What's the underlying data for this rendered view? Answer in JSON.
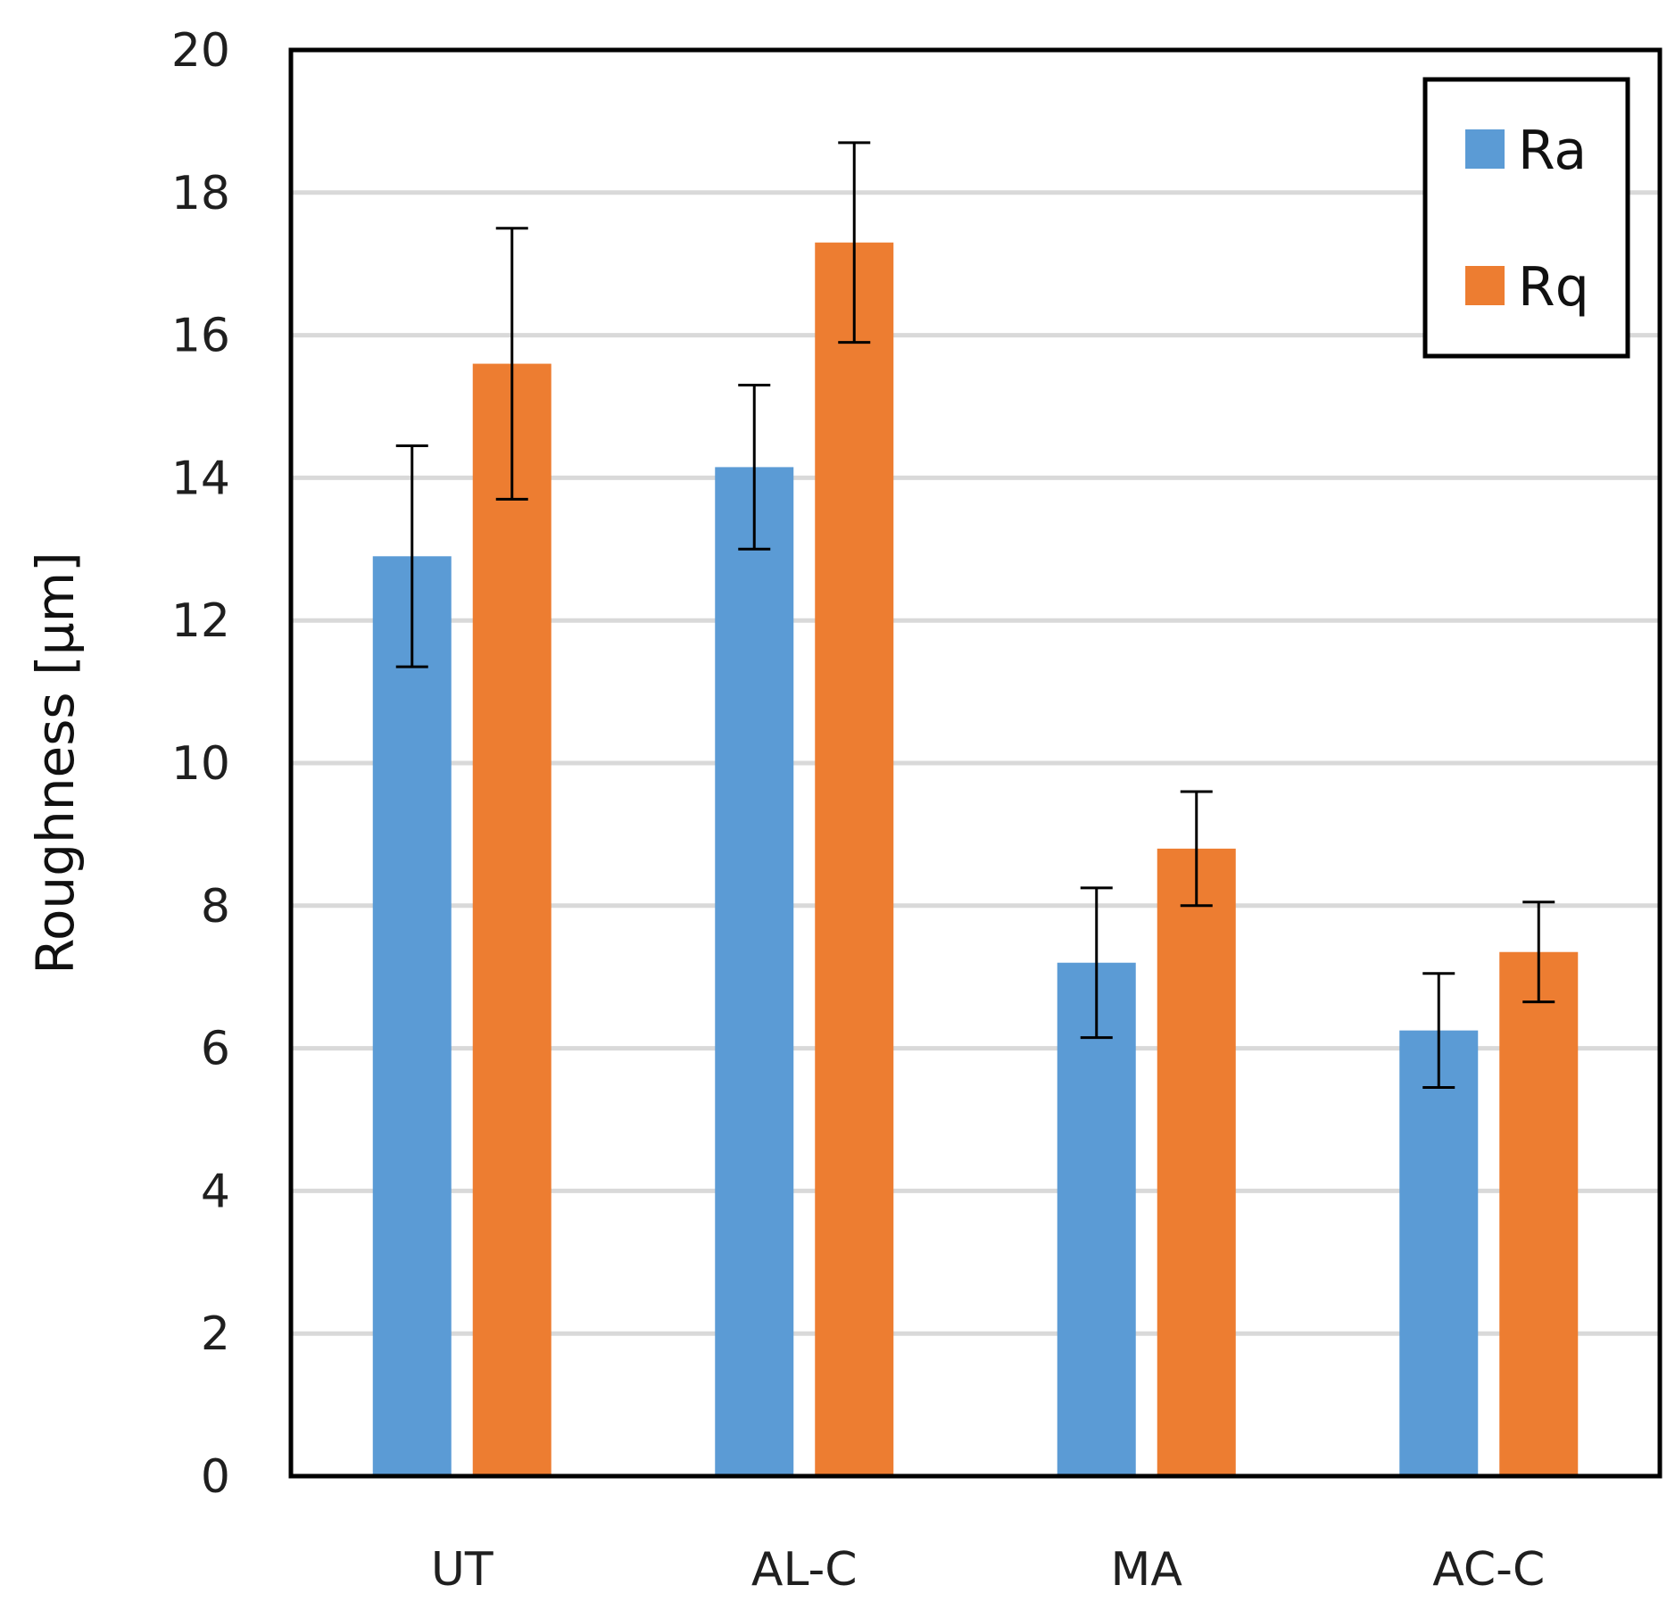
{
  "chart_data": {
    "type": "bar",
    "title": "",
    "xlabel": "",
    "ylabel": "Roughness [µm]",
    "categories": [
      "UT",
      "AL-C",
      "MA",
      "AC-C"
    ],
    "ylim": [
      0,
      20
    ],
    "yticks": [
      "0",
      "2",
      "4",
      "6",
      "8",
      "10",
      "12",
      "14",
      "16",
      "18",
      "20"
    ],
    "grid": true,
    "legend_position": "top-right",
    "series": [
      {
        "name": "Ra",
        "color": "#5B9BD5",
        "values": [
          12.9,
          14.15,
          7.2,
          6.25
        ],
        "errors": [
          1.55,
          1.15,
          1.05,
          0.8
        ]
      },
      {
        "name": "Rq",
        "color": "#ED7D31",
        "values": [
          15.6,
          17.3,
          8.8,
          7.35
        ],
        "errors": [
          1.9,
          1.4,
          0.8,
          0.7
        ]
      }
    ]
  }
}
